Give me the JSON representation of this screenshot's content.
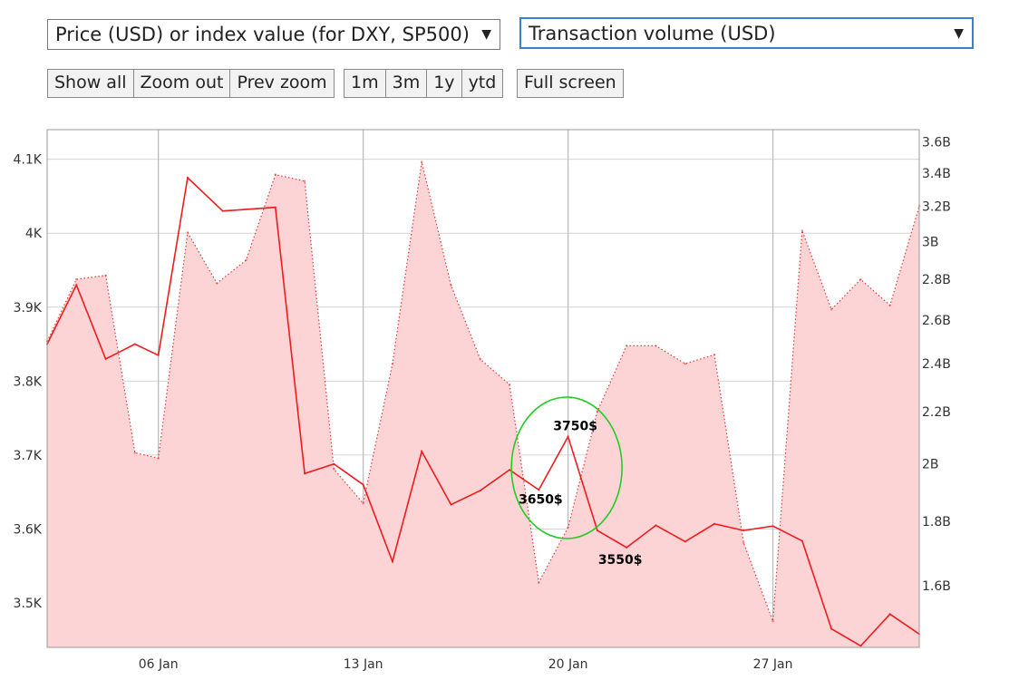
{
  "controls": {
    "left_select": "Price (USD) or index value (for DXY, SP500)",
    "right_select": "Transaction volume (USD)",
    "dropdown_arrow": "▼",
    "zoom_buttons": [
      "Show all",
      "Zoom out",
      "Prev zoom"
    ],
    "range_buttons": [
      "1m",
      "3m",
      "1y",
      "ytd"
    ],
    "fullscreen_button": "Full screen"
  },
  "chart_data": {
    "type": "line",
    "x_ticks": [
      "06 Jan",
      "13 Jan",
      "20 Jan",
      "27 Jan"
    ],
    "x_tick_days": [
      6,
      13,
      20,
      27
    ],
    "x_range": [
      2.2,
      32.0
    ],
    "y_left": {
      "ticks": [
        "3.5K",
        "3.6K",
        "3.7K",
        "3.8K",
        "3.9K",
        "4K",
        "4.1K"
      ],
      "tick_values": [
        3500,
        3600,
        3700,
        3800,
        3900,
        4000,
        4100
      ],
      "range": [
        3440,
        4140
      ]
    },
    "y_right": {
      "ticks": [
        "1.6B",
        "1.8B",
        "2B",
        "2.2B",
        "2.4B",
        "2.6B",
        "2.8B",
        "3B",
        "3.2B",
        "3.4B",
        "3.6B"
      ],
      "tick_values": [
        1.6,
        1.8,
        2.0,
        2.2,
        2.4,
        2.6,
        2.8,
        3.0,
        3.2,
        3.4,
        3.6
      ],
      "scale": "log",
      "range": [
        1.43,
        3.68
      ]
    },
    "grid": true,
    "colors": {
      "price_line": "#ee1c1c",
      "volume_fill": "#fdd4d6",
      "volume_line": "#e23a3a",
      "annotation_circle": "#22cc22"
    },
    "series": [
      {
        "axis": "left",
        "style": "solid line",
        "x": [
          2.2,
          3.2,
          4.2,
          5.2,
          6.0,
          7.0,
          8.2,
          10.0,
          11.0,
          12.0,
          13.0,
          14.0,
          15.0,
          16.0,
          17.0,
          18.0,
          19.0,
          20.0,
          21.0,
          22.0,
          23.0,
          24.0,
          25.0,
          26.0,
          27.0,
          28.0,
          29.0,
          30.0,
          31.0,
          32.0
        ],
        "y": [
          3850,
          3930,
          3830,
          3850,
          3835,
          4075,
          4030,
          4035,
          3675,
          3688,
          3660,
          3556,
          3705,
          3633,
          3652,
          3680,
          3653,
          3725,
          3598,
          3575,
          3605,
          3583,
          3607,
          3598,
          3604,
          3584,
          3465,
          3442,
          3485,
          3458
        ]
      },
      {
        "axis": "right",
        "style": "dotted line with filled area",
        "x": [
          2.2,
          3.2,
          4.2,
          5.2,
          6.0,
          7.0,
          8.0,
          9.0,
          10.0,
          11.0,
          12.0,
          13.0,
          14.0,
          15.0,
          16.0,
          17.0,
          18.0,
          19.0,
          20.0,
          21.0,
          22.0,
          23.0,
          24.0,
          25.0,
          26.0,
          27.0,
          28.0,
          29.0,
          30.0,
          31.0,
          32.0
        ],
        "y": [
          2.5,
          2.8,
          2.82,
          2.04,
          2.02,
          3.05,
          2.78,
          2.9,
          3.39,
          3.35,
          1.98,
          1.86,
          2.4,
          3.47,
          2.77,
          2.42,
          2.31,
          1.61,
          1.78,
          2.2,
          2.48,
          2.48,
          2.4,
          2.44,
          1.73,
          1.5,
          3.06,
          2.65,
          2.8,
          2.67,
          3.2
        ]
      }
    ],
    "annotations": [
      "3750$",
      "3650$",
      "3550$"
    ]
  }
}
